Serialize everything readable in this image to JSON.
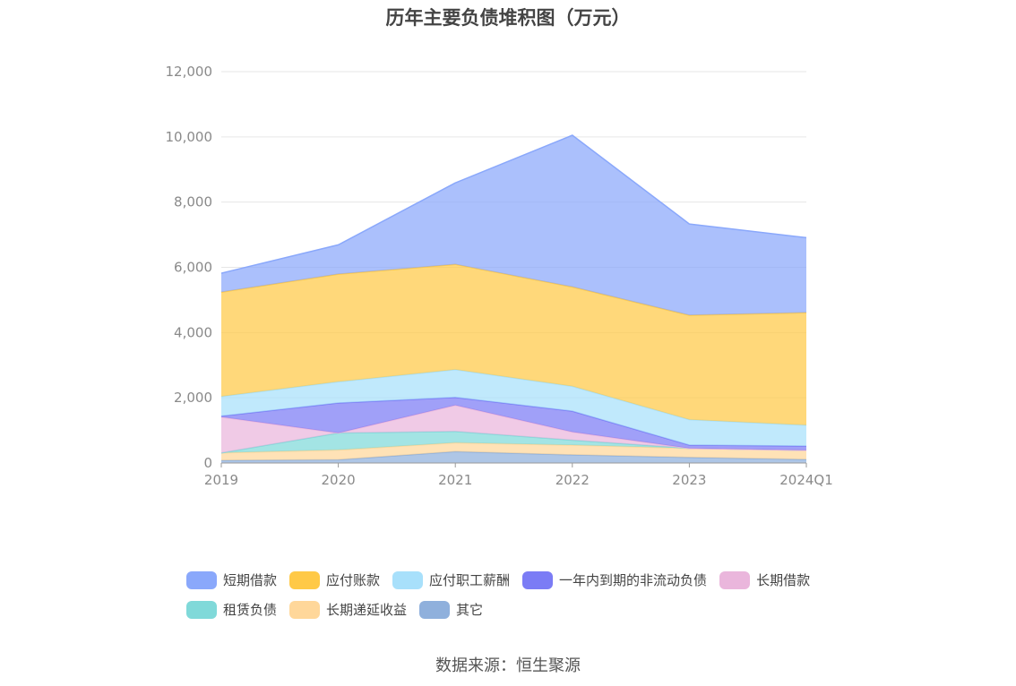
{
  "chart_data": {
    "type": "area",
    "stacked": true,
    "title": "历年主要负债堆积图（万元）",
    "categories": [
      "2019",
      "2020",
      "2021",
      "2022",
      "2023",
      "2024Q1"
    ],
    "ylim": [
      0,
      12000
    ],
    "yticks": [
      "0",
      "2,000",
      "4,000",
      "6,000",
      "8,000",
      "10,000",
      "12,000"
    ],
    "grid": true,
    "legend_position": "bottom",
    "series": [
      {
        "name": "其它",
        "color": "#8fb0dc",
        "values": [
          80,
          100,
          350,
          250,
          170,
          110
        ]
      },
      {
        "name": "长期递延收益",
        "color": "#ffd79a",
        "values": [
          230,
          300,
          270,
          300,
          280,
          280
        ]
      },
      {
        "name": "租赁负债",
        "color": "#80d9d9",
        "values": [
          0,
          520,
          350,
          150,
          0,
          0
        ]
      },
      {
        "name": "长期借款",
        "color": "#eab6dc",
        "values": [
          1100,
          0,
          800,
          250,
          0,
          0
        ]
      },
      {
        "name": "一年内到期的非流动负债",
        "color": "#7b7cf5",
        "values": [
          30,
          920,
          240,
          640,
          100,
          130
        ]
      },
      {
        "name": "应付职工薪酬",
        "color": "#a8e0fb",
        "values": [
          600,
          650,
          850,
          760,
          780,
          640
        ]
      },
      {
        "name": "应付账款",
        "color": "#ffc947",
        "values": [
          3200,
          3300,
          3230,
          3050,
          3200,
          3450
        ]
      },
      {
        "name": "短期借款",
        "color": "#8aa8fb",
        "values": [
          580,
          900,
          2500,
          4650,
          2800,
          2300
        ]
      }
    ]
  },
  "legend": [
    {
      "label": "短期借款",
      "color": "#8aa8fb"
    },
    {
      "label": "应付账款",
      "color": "#ffc947"
    },
    {
      "label": "应付职工薪酬",
      "color": "#a8e0fb"
    },
    {
      "label": "一年内到期的非流动负债",
      "color": "#7b7cf5"
    },
    {
      "label": "长期借款",
      "color": "#eab6dc"
    },
    {
      "label": "租赁负债",
      "color": "#80d9d9"
    },
    {
      "label": "长期递延收益",
      "color": "#ffd79a"
    },
    {
      "label": "其它",
      "color": "#8fb0dc"
    }
  ],
  "source_note": "数据来源：恒生聚源"
}
